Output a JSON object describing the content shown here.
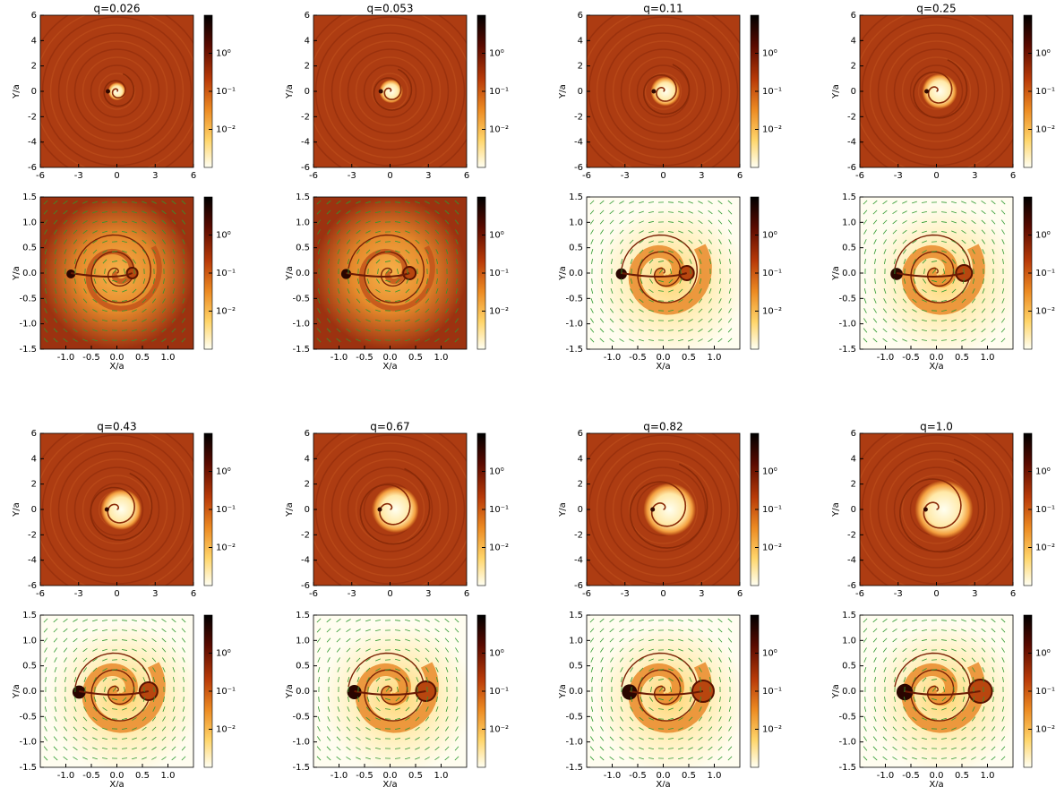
{
  "chart_data": [
    {
      "type": "heatmap",
      "title": "q=0.026",
      "ylabel": "Y/a",
      "xlim": [
        -6,
        6
      ],
      "ylim": [
        -6,
        6
      ],
      "xticks": [
        -6,
        -3,
        0,
        3,
        6
      ],
      "yticks": [
        -6,
        -4,
        -2,
        0,
        2,
        4,
        6
      ],
      "colorbar": {
        "lim": [
          0.001,
          10
        ],
        "log": true,
        "ticks": [
          {
            "value": 1,
            "label": "10⁰"
          },
          {
            "value": 0.1,
            "label": "10⁻¹"
          },
          {
            "value": 0.01,
            "label": "10⁻²"
          }
        ]
      }
    },
    {
      "type": "heatmap",
      "title": "q=0.053",
      "ylabel": "Y/a",
      "xlim": [
        -6,
        6
      ],
      "ylim": [
        -6,
        6
      ],
      "xticks": [
        -6,
        -3,
        0,
        3,
        6
      ],
      "yticks": [
        -6,
        -4,
        -2,
        0,
        2,
        4,
        6
      ],
      "colorbar": {
        "lim": [
          0.001,
          10
        ],
        "log": true,
        "ticks": [
          {
            "value": 1,
            "label": "10⁰"
          },
          {
            "value": 0.1,
            "label": "10⁻¹"
          },
          {
            "value": 0.01,
            "label": "10⁻²"
          }
        ]
      }
    },
    {
      "type": "heatmap",
      "title": "q=0.11",
      "ylabel": "Y/a",
      "xlim": [
        -6,
        6
      ],
      "ylim": [
        -6,
        6
      ],
      "xticks": [
        -6,
        -3,
        0,
        3,
        6
      ],
      "yticks": [
        -6,
        -4,
        -2,
        0,
        2,
        4,
        6
      ],
      "colorbar": {
        "lim": [
          0.001,
          10
        ],
        "log": true,
        "ticks": [
          {
            "value": 1,
            "label": "10⁰"
          },
          {
            "value": 0.1,
            "label": "10⁻¹"
          },
          {
            "value": 0.01,
            "label": "10⁻²"
          }
        ]
      }
    },
    {
      "type": "heatmap",
      "title": "q=0.25",
      "ylabel": "Y/a",
      "xlim": [
        -6,
        6
      ],
      "ylim": [
        -6,
        6
      ],
      "xticks": [
        -6,
        -3,
        0,
        3,
        6
      ],
      "yticks": [
        -6,
        -4,
        -2,
        0,
        2,
        4,
        6
      ],
      "colorbar": {
        "lim": [
          0.001,
          10
        ],
        "log": true,
        "ticks": [
          {
            "value": 1,
            "label": "10⁰"
          },
          {
            "value": 0.1,
            "label": "10⁻¹"
          },
          {
            "value": 0.01,
            "label": "10⁻²"
          }
        ]
      }
    },
    {
      "type": "heatmap",
      "quiver": true,
      "ylabel": "Y/a",
      "xlabel": "X/a",
      "xlim": [
        -1.5,
        1.5
      ],
      "ylim": [
        -1.5,
        1.5
      ],
      "xticks": [
        {
          "value": -1,
          "label": "-1.0"
        },
        -0.5,
        {
          "value": 0,
          "label": "0.0"
        },
        0.5,
        {
          "value": 1,
          "label": "1.0"
        }
      ],
      "yticks": [
        -1.5,
        {
          "value": -1,
          "label": "-1.0"
        },
        -0.5,
        {
          "value": 0,
          "label": "0.0"
        },
        0.5,
        {
          "value": 1,
          "label": "1.0"
        },
        1.5
      ],
      "colorbar": {
        "lim": [
          0.001,
          10
        ],
        "log": true,
        "ticks": [
          {
            "value": 1,
            "label": "10⁰"
          },
          {
            "value": 0.1,
            "label": "10⁻¹"
          },
          {
            "value": 0.01,
            "label": "10⁻²"
          }
        ]
      }
    },
    {
      "type": "heatmap",
      "quiver": true,
      "ylabel": "Y/a",
      "xlabel": "X/a",
      "xlim": [
        -1.5,
        1.5
      ],
      "ylim": [
        -1.5,
        1.5
      ],
      "xticks": [
        {
          "value": -1,
          "label": "-1.0"
        },
        -0.5,
        {
          "value": 0,
          "label": "0.0"
        },
        0.5,
        {
          "value": 1,
          "label": "1.0"
        }
      ],
      "yticks": [
        -1.5,
        {
          "value": -1,
          "label": "-1.0"
        },
        -0.5,
        {
          "value": 0,
          "label": "0.0"
        },
        0.5,
        {
          "value": 1,
          "label": "1.0"
        },
        1.5
      ],
      "colorbar": {
        "lim": [
          0.001,
          10
        ],
        "log": true,
        "ticks": [
          {
            "value": 1,
            "label": "10⁰"
          },
          {
            "value": 0.1,
            "label": "10⁻¹"
          },
          {
            "value": 0.01,
            "label": "10⁻²"
          }
        ]
      }
    },
    {
      "type": "heatmap",
      "quiver": true,
      "ylabel": "Y/a",
      "xlabel": "X/a",
      "xlim": [
        -1.5,
        1.5
      ],
      "ylim": [
        -1.5,
        1.5
      ],
      "xticks": [
        {
          "value": -1,
          "label": "-1.0"
        },
        -0.5,
        {
          "value": 0,
          "label": "0.0"
        },
        0.5,
        {
          "value": 1,
          "label": "1.0"
        }
      ],
      "yticks": [
        -1.5,
        {
          "value": -1,
          "label": "-1.0"
        },
        -0.5,
        {
          "value": 0,
          "label": "0.0"
        },
        0.5,
        {
          "value": 1,
          "label": "1.0"
        },
        1.5
      ],
      "colorbar": {
        "lim": [
          0.001,
          10
        ],
        "log": true,
        "ticks": [
          {
            "value": 1,
            "label": "10⁰"
          },
          {
            "value": 0.1,
            "label": "10⁻¹"
          },
          {
            "value": 0.01,
            "label": "10⁻²"
          }
        ]
      }
    },
    {
      "type": "heatmap",
      "quiver": true,
      "ylabel": "Y/a",
      "xlabel": "X/a",
      "xlim": [
        -1.5,
        1.5
      ],
      "ylim": [
        -1.5,
        1.5
      ],
      "xticks": [
        {
          "value": -1,
          "label": "-1.0"
        },
        -0.5,
        {
          "value": 0,
          "label": "0.0"
        },
        0.5,
        {
          "value": 1,
          "label": "1.0"
        }
      ],
      "yticks": [
        -1.5,
        {
          "value": -1,
          "label": "-1.0"
        },
        -0.5,
        {
          "value": 0,
          "label": "0.0"
        },
        0.5,
        {
          "value": 1,
          "label": "1.0"
        },
        1.5
      ],
      "colorbar": {
        "lim": [
          0.001,
          10
        ],
        "log": true,
        "ticks": [
          {
            "value": 1,
            "label": "10⁰"
          },
          {
            "value": 0.1,
            "label": "10⁻¹"
          },
          {
            "value": 0.01,
            "label": "10⁻²"
          }
        ]
      }
    },
    {
      "type": "heatmap",
      "title": "q=0.43",
      "ylabel": "Y/a",
      "xlim": [
        -6,
        6
      ],
      "ylim": [
        -6,
        6
      ],
      "xticks": [
        -6,
        -3,
        0,
        3,
        6
      ],
      "yticks": [
        -6,
        -4,
        -2,
        0,
        2,
        4,
        6
      ],
      "colorbar": {
        "lim": [
          0.001,
          10
        ],
        "log": true,
        "ticks": [
          {
            "value": 1,
            "label": "10⁰"
          },
          {
            "value": 0.1,
            "label": "10⁻¹"
          },
          {
            "value": 0.01,
            "label": "10⁻²"
          }
        ]
      }
    },
    {
      "type": "heatmap",
      "title": "q=0.67",
      "ylabel": "Y/a",
      "xlim": [
        -6,
        6
      ],
      "ylim": [
        -6,
        6
      ],
      "xticks": [
        -6,
        -3,
        0,
        3,
        6
      ],
      "yticks": [
        -6,
        -4,
        -2,
        0,
        2,
        4,
        6
      ],
      "colorbar": {
        "lim": [
          0.001,
          10
        ],
        "log": true,
        "ticks": [
          {
            "value": 1,
            "label": "10⁰"
          },
          {
            "value": 0.1,
            "label": "10⁻¹"
          },
          {
            "value": 0.01,
            "label": "10⁻²"
          }
        ]
      }
    },
    {
      "type": "heatmap",
      "title": "q=0.82",
      "ylabel": "Y/a",
      "xlim": [
        -6,
        6
      ],
      "ylim": [
        -6,
        6
      ],
      "xticks": [
        -6,
        -3,
        0,
        3,
        6
      ],
      "yticks": [
        -6,
        -4,
        -2,
        0,
        2,
        4,
        6
      ],
      "colorbar": {
        "lim": [
          0.001,
          10
        ],
        "log": true,
        "ticks": [
          {
            "value": 1,
            "label": "10⁰"
          },
          {
            "value": 0.1,
            "label": "10⁻¹"
          },
          {
            "value": 0.01,
            "label": "10⁻²"
          }
        ]
      }
    },
    {
      "type": "heatmap",
      "title": "q=1.0",
      "ylabel": "Y/a",
      "xlim": [
        -6,
        6
      ],
      "ylim": [
        -6,
        6
      ],
      "xticks": [
        -6,
        -3,
        0,
        3,
        6
      ],
      "yticks": [
        -6,
        -4,
        -2,
        0,
        2,
        4,
        6
      ],
      "colorbar": {
        "lim": [
          0.001,
          10
        ],
        "log": true,
        "ticks": [
          {
            "value": 1,
            "label": "10⁰"
          },
          {
            "value": 0.1,
            "label": "10⁻¹"
          },
          {
            "value": 0.01,
            "label": "10⁻²"
          }
        ]
      }
    },
    {
      "type": "heatmap",
      "quiver": true,
      "ylabel": "Y/a",
      "xlabel": "X/a",
      "xlim": [
        -1.5,
        1.5
      ],
      "ylim": [
        -1.5,
        1.5
      ],
      "xticks": [
        {
          "value": -1,
          "label": "-1.0"
        },
        -0.5,
        {
          "value": 0,
          "label": "0.0"
        },
        0.5,
        {
          "value": 1,
          "label": "1.0"
        }
      ],
      "yticks": [
        -1.5,
        {
          "value": -1,
          "label": "-1.0"
        },
        -0.5,
        {
          "value": 0,
          "label": "0.0"
        },
        0.5,
        {
          "value": 1,
          "label": "1.0"
        },
        1.5
      ],
      "colorbar": {
        "lim": [
          0.001,
          10
        ],
        "log": true,
        "ticks": [
          {
            "value": 1,
            "label": "10⁰"
          },
          {
            "value": 0.1,
            "label": "10⁻¹"
          },
          {
            "value": 0.01,
            "label": "10⁻²"
          }
        ]
      }
    },
    {
      "type": "heatmap",
      "quiver": true,
      "ylabel": "Y/a",
      "xlabel": "X/a",
      "xlim": [
        -1.5,
        1.5
      ],
      "ylim": [
        -1.5,
        1.5
      ],
      "xticks": [
        {
          "value": -1,
          "label": "-1.0"
        },
        -0.5,
        {
          "value": 0,
          "label": "0.0"
        },
        0.5,
        {
          "value": 1,
          "label": "1.0"
        }
      ],
      "yticks": [
        -1.5,
        {
          "value": -1,
          "label": "-1.0"
        },
        -0.5,
        {
          "value": 0,
          "label": "0.0"
        },
        0.5,
        {
          "value": 1,
          "label": "1.0"
        },
        1.5
      ],
      "colorbar": {
        "lim": [
          0.001,
          10
        ],
        "log": true,
        "ticks": [
          {
            "value": 1,
            "label": "10⁰"
          },
          {
            "value": 0.1,
            "label": "10⁻¹"
          },
          {
            "value": 0.01,
            "label": "10⁻²"
          }
        ]
      }
    },
    {
      "type": "heatmap",
      "quiver": true,
      "ylabel": "Y/a",
      "xlabel": "X/a",
      "xlim": [
        -1.5,
        1.5
      ],
      "ylim": [
        -1.5,
        1.5
      ],
      "xticks": [
        {
          "value": -1,
          "label": "-1.0"
        },
        -0.5,
        {
          "value": 0,
          "label": "0.0"
        },
        0.5,
        {
          "value": 1,
          "label": "1.0"
        }
      ],
      "yticks": [
        -1.5,
        {
          "value": -1,
          "label": "-1.0"
        },
        -0.5,
        {
          "value": 0,
          "label": "0.0"
        },
        0.5,
        {
          "value": 1,
          "label": "1.0"
        },
        1.5
      ],
      "colorbar": {
        "lim": [
          0.001,
          10
        ],
        "log": true,
        "ticks": [
          {
            "value": 1,
            "label": "10⁰"
          },
          {
            "value": 0.1,
            "label": "10⁻¹"
          },
          {
            "value": 0.01,
            "label": "10⁻²"
          }
        ]
      }
    },
    {
      "type": "heatmap",
      "quiver": true,
      "ylabel": "Y/a",
      "xlabel": "X/a",
      "xlim": [
        -1.5,
        1.5
      ],
      "ylim": [
        -1.5,
        1.5
      ],
      "xticks": [
        {
          "value": -1,
          "label": "-1.0"
        },
        -0.5,
        {
          "value": 0,
          "label": "0.0"
        },
        0.5,
        {
          "value": 1,
          "label": "1.0"
        }
      ],
      "yticks": [
        -1.5,
        {
          "value": -1,
          "label": "-1.0"
        },
        -0.5,
        {
          "value": 0,
          "label": "0.0"
        },
        0.5,
        {
          "value": 1,
          "label": "1.0"
        },
        1.5
      ],
      "colorbar": {
        "lim": [
          0.001,
          10
        ],
        "log": true,
        "ticks": [
          {
            "value": 1,
            "label": "10⁰"
          },
          {
            "value": 0.1,
            "label": "10⁻¹"
          },
          {
            "value": 0.01,
            "label": "10⁻²"
          }
        ]
      }
    }
  ]
}
